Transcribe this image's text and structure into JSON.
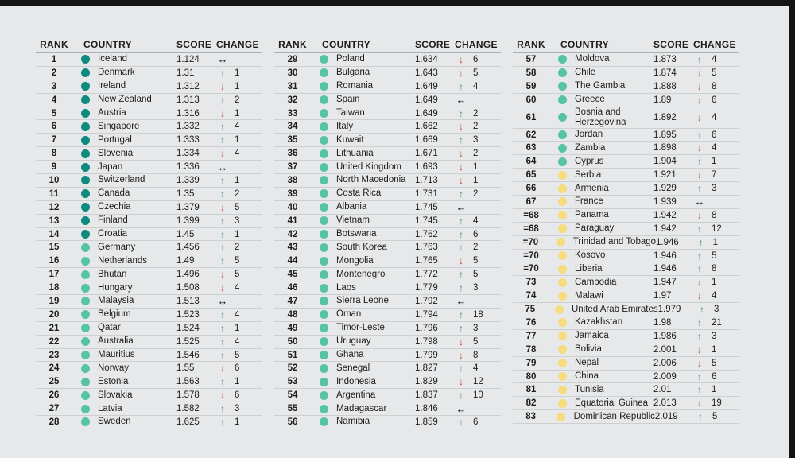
{
  "colors": {
    "bg": "#e7e8e9",
    "frame": "#141414",
    "text": "#1d1d1b",
    "tier1": "#0f8a7e",
    "tier2": "#56c4a1",
    "tier3": "#f6dc7d",
    "up": "#3e8e70",
    "down": "#c0453b",
    "same": "#1a1a1a"
  },
  "chart_data": {
    "type": "table",
    "columns": [
      "RANK",
      "COUNTRY",
      "SCORE",
      "CHANGE"
    ],
    "column_groups": [
      {
        "rows": [
          {
            "rank": "1",
            "country": "Iceland",
            "score": "1.124",
            "tier": "t1",
            "dir": "same",
            "amount": ""
          },
          {
            "rank": "2",
            "country": "Denmark",
            "score": "1.31",
            "tier": "t1",
            "dir": "up",
            "amount": "1"
          },
          {
            "rank": "3",
            "country": "Ireland",
            "score": "1.312",
            "tier": "t1",
            "dir": "down",
            "amount": "1"
          },
          {
            "rank": "4",
            "country": "New Zealand",
            "score": "1.313",
            "tier": "t1",
            "dir": "up",
            "amount": "2"
          },
          {
            "rank": "5",
            "country": "Austria",
            "score": "1.316",
            "tier": "t1",
            "dir": "down",
            "amount": "1"
          },
          {
            "rank": "6",
            "country": "Singapore",
            "score": "1.332",
            "tier": "t1",
            "dir": "up",
            "amount": "4"
          },
          {
            "rank": "7",
            "country": "Portugal",
            "score": "1.333",
            "tier": "t1",
            "dir": "up",
            "amount": "1"
          },
          {
            "rank": "8",
            "country": "Slovenia",
            "score": "1.334",
            "tier": "t1",
            "dir": "down",
            "amount": "4"
          },
          {
            "rank": "9",
            "country": "Japan",
            "score": "1.336",
            "tier": "t1",
            "dir": "same",
            "amount": ""
          },
          {
            "rank": "10",
            "country": "Switzerland",
            "score": "1.339",
            "tier": "t1",
            "dir": "up",
            "amount": "1"
          },
          {
            "rank": "11",
            "country": "Canada",
            "score": "1.35",
            "tier": "t1",
            "dir": "up",
            "amount": "2"
          },
          {
            "rank": "12",
            "country": "Czechia",
            "score": "1.379",
            "tier": "t1",
            "dir": "down",
            "amount": "5"
          },
          {
            "rank": "13",
            "country": "Finland",
            "score": "1.399",
            "tier": "t1",
            "dir": "up",
            "amount": "3"
          },
          {
            "rank": "14",
            "country": "Croatia",
            "score": "1.45",
            "tier": "t1",
            "dir": "up",
            "amount": "1"
          },
          {
            "rank": "15",
            "country": "Germany",
            "score": "1.456",
            "tier": "t2",
            "dir": "up",
            "amount": "2"
          },
          {
            "rank": "16",
            "country": "Netherlands",
            "score": "1.49",
            "tier": "t2",
            "dir": "up",
            "amount": "5"
          },
          {
            "rank": "17",
            "country": "Bhutan",
            "score": "1.496",
            "tier": "t2",
            "dir": "down",
            "amount": "5"
          },
          {
            "rank": "18",
            "country": "Hungary",
            "score": "1.508",
            "tier": "t2",
            "dir": "down",
            "amount": "4"
          },
          {
            "rank": "19",
            "country": "Malaysia",
            "score": "1.513",
            "tier": "t2",
            "dir": "same",
            "amount": ""
          },
          {
            "rank": "20",
            "country": "Belgium",
            "score": "1.523",
            "tier": "t2",
            "dir": "up",
            "amount": "4"
          },
          {
            "rank": "21",
            "country": "Qatar",
            "score": "1.524",
            "tier": "t2",
            "dir": "up",
            "amount": "1"
          },
          {
            "rank": "22",
            "country": "Australia",
            "score": "1.525",
            "tier": "t2",
            "dir": "up",
            "amount": "4"
          },
          {
            "rank": "23",
            "country": "Mauritius",
            "score": "1.546",
            "tier": "t2",
            "dir": "up",
            "amount": "5"
          },
          {
            "rank": "24",
            "country": "Norway",
            "score": "1.55",
            "tier": "t2",
            "dir": "down",
            "amount": "6"
          },
          {
            "rank": "25",
            "country": "Estonia",
            "score": "1.563",
            "tier": "t2",
            "dir": "up",
            "amount": "1"
          },
          {
            "rank": "26",
            "country": "Slovakia",
            "score": "1.578",
            "tier": "t2",
            "dir": "down",
            "amount": "6"
          },
          {
            "rank": "27",
            "country": "Latvia",
            "score": "1.582",
            "tier": "t2",
            "dir": "up",
            "amount": "3"
          },
          {
            "rank": "28",
            "country": "Sweden",
            "score": "1.625",
            "tier": "t2",
            "dir": "up",
            "amount": "1"
          }
        ]
      },
      {
        "rows": [
          {
            "rank": "29",
            "country": "Poland",
            "score": "1.634",
            "tier": "t2",
            "dir": "down",
            "amount": "6"
          },
          {
            "rank": "30",
            "country": "Bulgaria",
            "score": "1.643",
            "tier": "t2",
            "dir": "down",
            "amount": "5"
          },
          {
            "rank": "31",
            "country": "Romania",
            "score": "1.649",
            "tier": "t2",
            "dir": "up",
            "amount": "4"
          },
          {
            "rank": "32",
            "country": "Spain",
            "score": "1.649",
            "tier": "t2",
            "dir": "same",
            "amount": ""
          },
          {
            "rank": "33",
            "country": "Taiwan",
            "score": "1.649",
            "tier": "t2",
            "dir": "up",
            "amount": "2"
          },
          {
            "rank": "34",
            "country": "Italy",
            "score": "1.662",
            "tier": "t2",
            "dir": "down",
            "amount": "2"
          },
          {
            "rank": "35",
            "country": "Kuwait",
            "score": "1.669",
            "tier": "t2",
            "dir": "up",
            "amount": "3"
          },
          {
            "rank": "36",
            "country": "Lithuania",
            "score": "1.671",
            "tier": "t2",
            "dir": "down",
            "amount": "2"
          },
          {
            "rank": "37",
            "country": "United Kingdom",
            "score": "1.693",
            "tier": "t2",
            "dir": "down",
            "amount": "1"
          },
          {
            "rank": "38",
            "country": "North Macedonia",
            "score": "1.713",
            "tier": "t2",
            "dir": "down",
            "amount": "1"
          },
          {
            "rank": "39",
            "country": "Costa Rica",
            "score": "1.731",
            "tier": "t2",
            "dir": "up",
            "amount": "2"
          },
          {
            "rank": "40",
            "country": "Albania",
            "score": "1.745",
            "tier": "t2",
            "dir": "same",
            "amount": ""
          },
          {
            "rank": "41",
            "country": "Vietnam",
            "score": "1.745",
            "tier": "t2",
            "dir": "up",
            "amount": "4"
          },
          {
            "rank": "42",
            "country": "Botswana",
            "score": "1.762",
            "tier": "t2",
            "dir": "up",
            "amount": "6"
          },
          {
            "rank": "43",
            "country": "South Korea",
            "score": "1.763",
            "tier": "t2",
            "dir": "up",
            "amount": "2"
          },
          {
            "rank": "44",
            "country": "Mongolia",
            "score": "1.765",
            "tier": "t2",
            "dir": "down",
            "amount": "5"
          },
          {
            "rank": "45",
            "country": "Montenegro",
            "score": "1.772",
            "tier": "t2",
            "dir": "up",
            "amount": "5"
          },
          {
            "rank": "46",
            "country": "Laos",
            "score": "1.779",
            "tier": "t2",
            "dir": "up",
            "amount": "3"
          },
          {
            "rank": "47",
            "country": "Sierra Leone",
            "score": "1.792",
            "tier": "t2",
            "dir": "same",
            "amount": ""
          },
          {
            "rank": "48",
            "country": "Oman",
            "score": "1.794",
            "tier": "t2",
            "dir": "up",
            "amount": "18"
          },
          {
            "rank": "49",
            "country": "Timor-Leste",
            "score": "1.796",
            "tier": "t2",
            "dir": "up",
            "amount": "3"
          },
          {
            "rank": "50",
            "country": "Uruguay",
            "score": "1.798",
            "tier": "t2",
            "dir": "down",
            "amount": "5"
          },
          {
            "rank": "51",
            "country": "Ghana",
            "score": "1.799",
            "tier": "t2",
            "dir": "down",
            "amount": "8"
          },
          {
            "rank": "52",
            "country": "Senegal",
            "score": "1.827",
            "tier": "t2",
            "dir": "up",
            "amount": "4"
          },
          {
            "rank": "53",
            "country": "Indonesia",
            "score": "1.829",
            "tier": "t2",
            "dir": "down",
            "amount": "12"
          },
          {
            "rank": "54",
            "country": "Argentina",
            "score": "1.837",
            "tier": "t2",
            "dir": "up",
            "amount": "10"
          },
          {
            "rank": "55",
            "country": "Madagascar",
            "score": "1.846",
            "tier": "t2",
            "dir": "same",
            "amount": ""
          },
          {
            "rank": "56",
            "country": "Namibia",
            "score": "1.859",
            "tier": "t2",
            "dir": "up",
            "amount": "6"
          }
        ]
      },
      {
        "rows": [
          {
            "rank": "57",
            "country": "Moldova",
            "score": "1.873",
            "tier": "t2",
            "dir": "up",
            "amount": "4"
          },
          {
            "rank": "58",
            "country": "Chile",
            "score": "1.874",
            "tier": "t2",
            "dir": "down",
            "amount": "5"
          },
          {
            "rank": "59",
            "country": "The Gambia",
            "score": "1.888",
            "tier": "t2",
            "dir": "down",
            "amount": "8"
          },
          {
            "rank": "60",
            "country": "Greece",
            "score": "1.89",
            "tier": "t2",
            "dir": "down",
            "amount": "6"
          },
          {
            "rank": "61",
            "country": "Bosnia and\nHerzegovina",
            "score": "1.892",
            "tier": "t2",
            "dir": "down",
            "amount": "4"
          },
          {
            "rank": "62",
            "country": "Jordan",
            "score": "1.895",
            "tier": "t2",
            "dir": "up",
            "amount": "6"
          },
          {
            "rank": "63",
            "country": "Zambia",
            "score": "1.898",
            "tier": "t2",
            "dir": "down",
            "amount": "4"
          },
          {
            "rank": "64",
            "country": "Cyprus",
            "score": "1.904",
            "tier": "t2",
            "dir": "up",
            "amount": "1"
          },
          {
            "rank": "65",
            "country": "Serbia",
            "score": "1.921",
            "tier": "t3",
            "dir": "down",
            "amount": "7"
          },
          {
            "rank": "66",
            "country": "Armenia",
            "score": "1.929",
            "tier": "t3",
            "dir": "up",
            "amount": "3"
          },
          {
            "rank": "67",
            "country": "France",
            "score": "1.939",
            "tier": "t3",
            "dir": "same",
            "amount": ""
          },
          {
            "rank": "=68",
            "country": "Panama",
            "score": "1.942",
            "tier": "t3",
            "dir": "down",
            "amount": "8"
          },
          {
            "rank": "=68",
            "country": "Paraguay",
            "score": "1.942",
            "tier": "t3",
            "dir": "up",
            "amount": "12"
          },
          {
            "rank": "=70",
            "country": "Trinidad and Tobago",
            "score": "1.946",
            "tier": "t3",
            "dir": "up",
            "amount": "1"
          },
          {
            "rank": "=70",
            "country": "Kosovo",
            "score": "1.946",
            "tier": "t3",
            "dir": "up",
            "amount": "5"
          },
          {
            "rank": "=70",
            "country": "Liberia",
            "score": "1.946",
            "tier": "t3",
            "dir": "up",
            "amount": "8"
          },
          {
            "rank": "73",
            "country": "Cambodia",
            "score": "1.947",
            "tier": "t3",
            "dir": "down",
            "amount": "1"
          },
          {
            "rank": "74",
            "country": "Malawi",
            "score": "1.97",
            "tier": "t3",
            "dir": "down",
            "amount": "4"
          },
          {
            "rank": "75",
            "country": "United Arab Emirates",
            "score": "1.979",
            "tier": "t3",
            "dir": "up",
            "amount": "3"
          },
          {
            "rank": "76",
            "country": "Kazakhstan",
            "score": "1.98",
            "tier": "t3",
            "dir": "up",
            "amount": "21"
          },
          {
            "rank": "77",
            "country": "Jamaica",
            "score": "1.986",
            "tier": "t3",
            "dir": "up",
            "amount": "3"
          },
          {
            "rank": "78",
            "country": "Bolivia",
            "score": "2.001",
            "tier": "t3",
            "dir": "down",
            "amount": "1"
          },
          {
            "rank": "79",
            "country": "Nepal",
            "score": "2.006",
            "tier": "t3",
            "dir": "down",
            "amount": "5"
          },
          {
            "rank": "80",
            "country": "China",
            "score": "2.009",
            "tier": "t3",
            "dir": "up",
            "amount": "6"
          },
          {
            "rank": "81",
            "country": "Tunisia",
            "score": "2.01",
            "tier": "t3",
            "dir": "up",
            "amount": "1"
          },
          {
            "rank": "82",
            "country": "Equatorial Guinea",
            "score": "2.013",
            "tier": "t3",
            "dir": "down",
            "amount": "19"
          },
          {
            "rank": "83",
            "country": "Dominican Republic",
            "score": "2.019",
            "tier": "t3",
            "dir": "up",
            "amount": "5"
          }
        ]
      }
    ]
  },
  "icons": {
    "up": "↑",
    "down": "↓",
    "same": "↔"
  }
}
